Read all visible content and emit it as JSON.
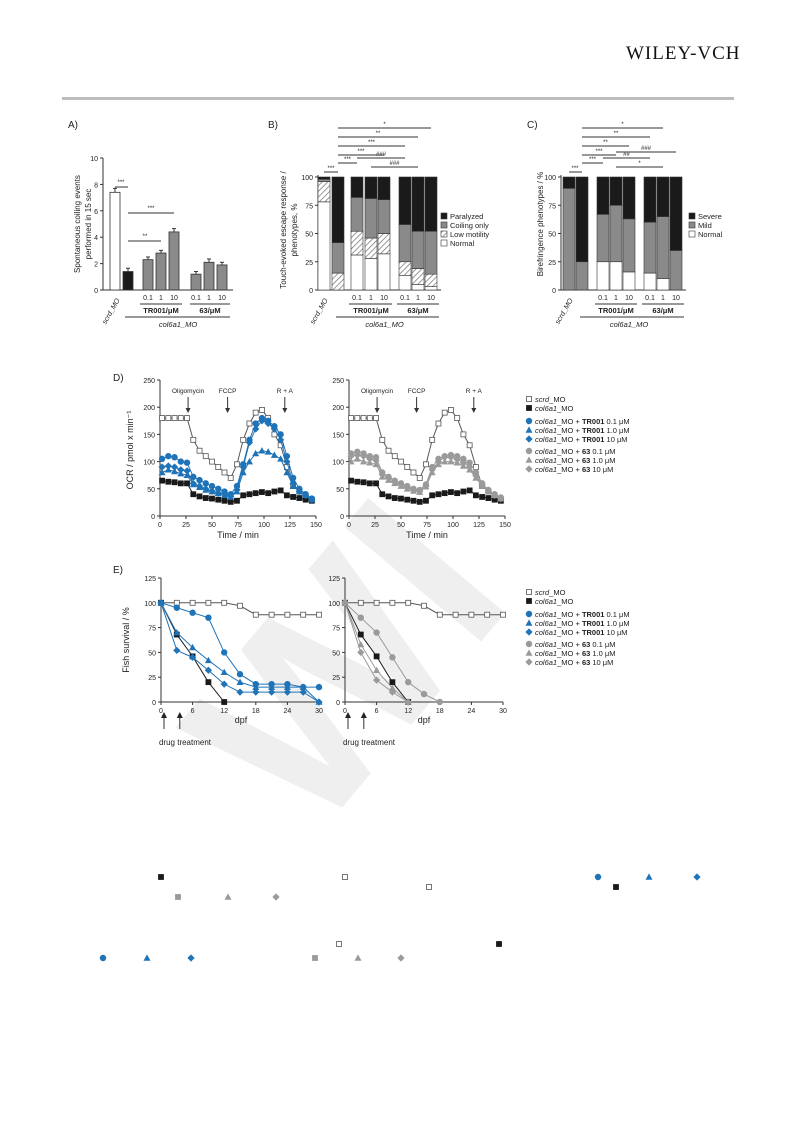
{
  "header": {
    "publisher": "WILEY-VCH"
  },
  "panels": {
    "A": "A)",
    "B": "B)",
    "C": "C)",
    "D": "D)",
    "E": "E)"
  },
  "watermark": "WI",
  "colors": {
    "blue": "#1f73b7",
    "gray": "#9a9a9a",
    "black": "#1a1a1a"
  },
  "common": {
    "scrd": "scrd_MO",
    "col6a1": "col6a1_MO",
    "tr001_unit": "TR001/μM",
    "c63_unit": "63/μM",
    "doses": [
      "0.1",
      "1",
      "10"
    ],
    "sig3": "***",
    "sig2": "**",
    "sig1": "*",
    "hash3": "###",
    "hash2": "##",
    "hash1": "#"
  },
  "chart_data": [
    {
      "panel": "A",
      "type": "bar",
      "ylabel": "Spontaneous coiling events performed in 15 sec",
      "ylim": [
        0,
        10
      ],
      "yticks": [
        "0",
        "2",
        "4",
        "6",
        "8",
        "10"
      ],
      "categories": [
        "scrd_MO",
        "col6a1_MO",
        "TR001 0.1",
        "TR001 1",
        "TR001 10",
        "63 0.1",
        "63 1",
        "63 10"
      ],
      "values": [
        7.4,
        1.4,
        2.3,
        2.8,
        4.4,
        1.2,
        2.1,
        1.9
      ],
      "errors": [
        0.3,
        0.25,
        0.2,
        0.2,
        0.25,
        0.2,
        0.25,
        0.2
      ]
    },
    {
      "panel": "B",
      "type": "bar",
      "stacked": true,
      "ylabel": "Touch-evoked escape response / phenotypes, %",
      "ylim": [
        0,
        100
      ],
      "yticks": [
        "0",
        "25",
        "50",
        "75",
        "100"
      ],
      "legend": [
        "Paralyzed",
        "Coiling only",
        "Low motility",
        "Normal"
      ],
      "categories": [
        "scrd_MO",
        "col6a1_MO",
        "TR001 0.1",
        "TR001 1",
        "TR001 10",
        "63 0.1",
        "63 1",
        "63 10"
      ],
      "series": [
        {
          "name": "Normal",
          "values": [
            78,
            0,
            31,
            28,
            32,
            13,
            5,
            3
          ]
        },
        {
          "name": "Low motility",
          "values": [
            18,
            15,
            21,
            18,
            18,
            12,
            14,
            11
          ]
        },
        {
          "name": "Coiling only",
          "values": [
            2,
            27,
            30,
            35,
            30,
            33,
            33,
            38
          ]
        },
        {
          "name": "Paralyzed",
          "values": [
            2,
            58,
            18,
            19,
            20,
            42,
            48,
            48
          ]
        }
      ]
    },
    {
      "panel": "C",
      "type": "bar",
      "stacked": true,
      "ylabel": "Birefringence phenotypes / %",
      "ylim": [
        0,
        100
      ],
      "yticks": [
        "0",
        "25",
        "50",
        "75",
        "100"
      ],
      "legend": [
        "Severe",
        "Mild",
        "Normal"
      ],
      "categories": [
        "scrd_MO",
        "col6a1_MO",
        "TR001 0.1",
        "TR001 1",
        "TR001 10",
        "63 0.1",
        "63 1",
        "63 10"
      ],
      "series": [
        {
          "name": "Normal",
          "values": [
            0,
            0,
            25,
            25,
            16,
            15,
            10,
            0
          ]
        },
        {
          "name": "Mild",
          "values": [
            90,
            25,
            42,
            50,
            47,
            45,
            55,
            35
          ]
        },
        {
          "name": "Severe",
          "values": [
            10,
            75,
            33,
            25,
            37,
            40,
            35,
            65
          ]
        }
      ]
    },
    {
      "panel": "D",
      "type": "line",
      "ylabel": "OCR / pmol x min⁻¹",
      "xlabel": "Time / min",
      "xlim": [
        0,
        150
      ],
      "ylim": [
        0,
        250
      ],
      "xticks": [
        "0",
        "25",
        "50",
        "75",
        "100",
        "125",
        "150"
      ],
      "yticks": [
        "0",
        "50",
        "100",
        "150",
        "200",
        "250"
      ],
      "annotations": [
        "Oligomycin",
        "FCCP",
        "R + A"
      ],
      "annotation_x": [
        27,
        65,
        120
      ],
      "x": [
        2,
        8,
        14,
        20,
        26,
        32,
        38,
        44,
        50,
        56,
        62,
        68,
        74,
        80,
        86,
        92,
        98,
        104,
        110,
        116,
        122,
        128,
        134,
        140,
        146
      ],
      "series_left": [
        {
          "name": "scrd_MO",
          "values": [
            180,
            180,
            180,
            180,
            180,
            140,
            120,
            110,
            100,
            90,
            80,
            70,
            95,
            140,
            170,
            190,
            195,
            180,
            150,
            130,
            90,
            55,
            45,
            38,
            30
          ]
        },
        {
          "name": "col6a1_MO",
          "values": [
            65,
            63,
            62,
            60,
            60,
            40,
            36,
            33,
            32,
            30,
            28,
            26,
            28,
            38,
            40,
            42,
            44,
            42,
            45,
            47,
            38,
            35,
            33,
            30,
            28
          ]
        },
        {
          "name": "TR001 0.1",
          "values": [
            105,
            110,
            108,
            100,
            98,
            72,
            66,
            60,
            55,
            50,
            45,
            40,
            55,
            95,
            140,
            170,
            180,
            175,
            165,
            150,
            110,
            70,
            50,
            40,
            32
          ]
        },
        {
          "name": "TR001 1.0",
          "values": [
            80,
            85,
            82,
            78,
            75,
            58,
            53,
            48,
            45,
            42,
            38,
            35,
            45,
            80,
            100,
            115,
            120,
            118,
            112,
            105,
            80,
            55,
            45,
            38,
            30
          ]
        },
        {
          "name": "TR001 10",
          "values": [
            90,
            92,
            90,
            85,
            83,
            60,
            55,
            50,
            46,
            42,
            40,
            36,
            48,
            90,
            135,
            160,
            175,
            170,
            160,
            140,
            100,
            60,
            45,
            38,
            30
          ]
        }
      ],
      "series_right": [
        {
          "name": "scrd_MO",
          "values": [
            180,
            180,
            180,
            180,
            180,
            140,
            120,
            110,
            100,
            90,
            80,
            70,
            95,
            140,
            170,
            190,
            195,
            180,
            150,
            130,
            90,
            55,
            45,
            38,
            30
          ]
        },
        {
          "name": "col6a1_MO",
          "values": [
            65,
            63,
            62,
            60,
            60,
            40,
            36,
            33,
            32,
            30,
            28,
            26,
            28,
            38,
            40,
            42,
            44,
            42,
            45,
            47,
            38,
            35,
            33,
            30,
            28
          ]
        },
        {
          "name": "63 0.1",
          "values": [
            115,
            118,
            115,
            110,
            108,
            80,
            72,
            65,
            60,
            55,
            50,
            48,
            58,
            90,
            105,
            110,
            112,
            110,
            105,
            98,
            80,
            60,
            48,
            40,
            34
          ]
        },
        {
          "name": "63 1.0",
          "values": [
            100,
            105,
            100,
            98,
            95,
            72,
            66,
            60,
            55,
            50,
            46,
            44,
            54,
            80,
            95,
            100,
            100,
            98,
            92,
            85,
            70,
            55,
            45,
            38,
            32
          ]
        },
        {
          "name": "63 10",
          "values": [
            110,
            112,
            110,
            105,
            102,
            76,
            70,
            62,
            58,
            52,
            48,
            45,
            55,
            85,
            100,
            108,
            108,
            104,
            98,
            90,
            74,
            58,
            46,
            38,
            32
          ]
        }
      ]
    },
    {
      "panel": "E",
      "type": "line",
      "ylabel": "Fish survival / %",
      "xlabel": "dpf",
      "xlim": [
        0,
        30
      ],
      "ylim": [
        0,
        125
      ],
      "xticks": [
        "0",
        "6",
        "12",
        "18",
        "24",
        "30"
      ],
      "yticks": [
        "0",
        "25",
        "50",
        "75",
        "100",
        "125"
      ],
      "annotation": "drug treatment",
      "arrows_x": [
        0,
        3
      ],
      "series_left": [
        {
          "name": "scrd_MO",
          "x": [
            0,
            3,
            6,
            9,
            12,
            15,
            18,
            21,
            24,
            27,
            30
          ],
          "values": [
            100,
            100,
            100,
            100,
            100,
            97,
            88,
            88,
            88,
            88,
            88
          ]
        },
        {
          "name": "col6a1_MO",
          "x": [
            0,
            3,
            6,
            9,
            12
          ],
          "values": [
            100,
            68,
            46,
            20,
            0
          ]
        },
        {
          "name": "TR001 0.1",
          "x": [
            0,
            3,
            6,
            9,
            12,
            15,
            18,
            21,
            24,
            27,
            30
          ],
          "values": [
            100,
            95,
            90,
            85,
            50,
            28,
            18,
            18,
            18,
            15,
            15
          ]
        },
        {
          "name": "TR001 1.0",
          "x": [
            0,
            3,
            6,
            9,
            12,
            15,
            18,
            21,
            24,
            27,
            30
          ],
          "values": [
            100,
            70,
            55,
            42,
            30,
            20,
            15,
            15,
            15,
            15,
            0
          ]
        },
        {
          "name": "TR001 10",
          "x": [
            0,
            3,
            6,
            9,
            12,
            15,
            18,
            21,
            24,
            27,
            30
          ],
          "values": [
            100,
            52,
            45,
            32,
            18,
            10,
            10,
            10,
            10,
            10,
            0
          ]
        }
      ],
      "series_right": [
        {
          "name": "scrd_MO",
          "x": [
            0,
            3,
            6,
            9,
            12,
            15,
            18,
            21,
            24,
            27,
            30
          ],
          "values": [
            100,
            100,
            100,
            100,
            100,
            97,
            88,
            88,
            88,
            88,
            88
          ]
        },
        {
          "name": "col6a1_MO",
          "x": [
            0,
            3,
            6,
            9,
            12
          ],
          "values": [
            100,
            68,
            46,
            20,
            0
          ]
        },
        {
          "name": "63 0.1",
          "x": [
            0,
            3,
            6,
            9,
            12,
            15,
            18
          ],
          "values": [
            100,
            85,
            70,
            45,
            20,
            8,
            0
          ]
        },
        {
          "name": "63 1.0",
          "x": [
            0,
            3,
            6,
            9,
            12
          ],
          "values": [
            100,
            58,
            32,
            14,
            0
          ]
        },
        {
          "name": "63 10",
          "x": [
            0,
            3,
            6,
            9,
            12
          ],
          "values": [
            100,
            50,
            22,
            10,
            0
          ]
        }
      ]
    }
  ],
  "legends": {
    "D": [
      "scrd_MO",
      "col6a1_MO",
      "col6a1_MO + TR001 0.1 μM",
      "col6a1_MO + TR001 1.0 μM",
      "col6a1_MO + TR001 10 μM",
      "col6a1_MO + 63 0.1 μM",
      "col6a1_MO + 63 1.0 μM",
      "col6a1_MO + 63 10 μM"
    ],
    "E": [
      "scrd_MO",
      "col6a1_MO",
      "col6a1_MO + TR001 0.1 μM",
      "col6a1_MO + TR001 1.0 μM",
      "col6a1_MO + TR001 10 μM",
      "col6a1_MO + 63 0.1 μM",
      "col6a1_MO + 63 1.0 μM",
      "col6a1_MO + 63 10 μM"
    ]
  }
}
